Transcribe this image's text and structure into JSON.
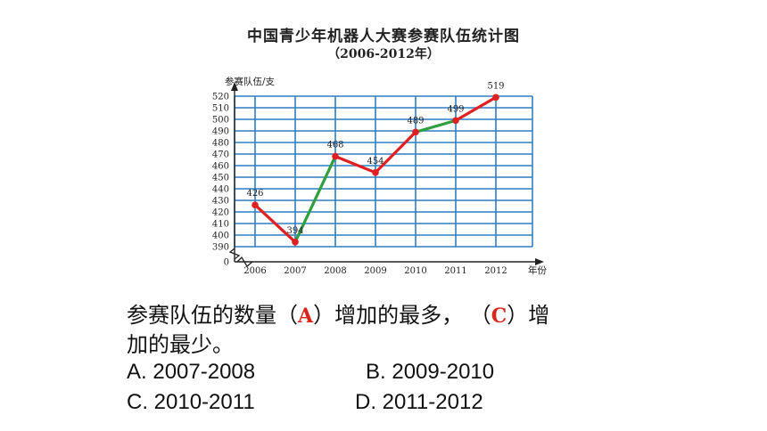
{
  "header": {
    "title": "中国青少年机器人大赛参赛队伍统计图",
    "subtitle": "（2006-2012年）"
  },
  "chart_data": {
    "type": "line",
    "title": "中国青少年机器人大赛参赛队伍统计图",
    "subtitle": "（2006-2012年）",
    "ylabel": "参赛队伍/支",
    "xlabel": "年份",
    "categories": [
      "2006",
      "2007",
      "2008",
      "2009",
      "2010",
      "2011",
      "2012"
    ],
    "values": [
      426,
      394,
      468,
      454,
      489,
      499,
      519
    ],
    "data_labels": [
      "426",
      "394",
      "468",
      "454",
      "489",
      "499",
      "519"
    ],
    "y_ticks": [
      "0",
      "390",
      "400",
      "410",
      "420",
      "430",
      "440",
      "450",
      "460",
      "470",
      "480",
      "490",
      "500",
      "510",
      "520"
    ],
    "ylim": [
      390,
      520
    ],
    "axis_break": true,
    "grid": true,
    "colors": {
      "line": "#e02020",
      "highlight": "#2e9e3e",
      "grid": "#2f7fc1",
      "point": "#e02020"
    },
    "highlighted_segments": [
      [
        "2007",
        "2008"
      ],
      [
        "2010",
        "2011"
      ]
    ]
  },
  "question": {
    "line1_a": "参赛队伍的数量（",
    "answer1": "A",
    "line1_b": "）增加的最多，  （",
    "answer2": "C",
    "line1_c": "）增",
    "line2": "加的最少。"
  },
  "options": {
    "A": "A.   2007-2008",
    "B": "B.  2009-2010",
    "C": "C.  2010-2011",
    "D": "D.  2011-2012"
  }
}
